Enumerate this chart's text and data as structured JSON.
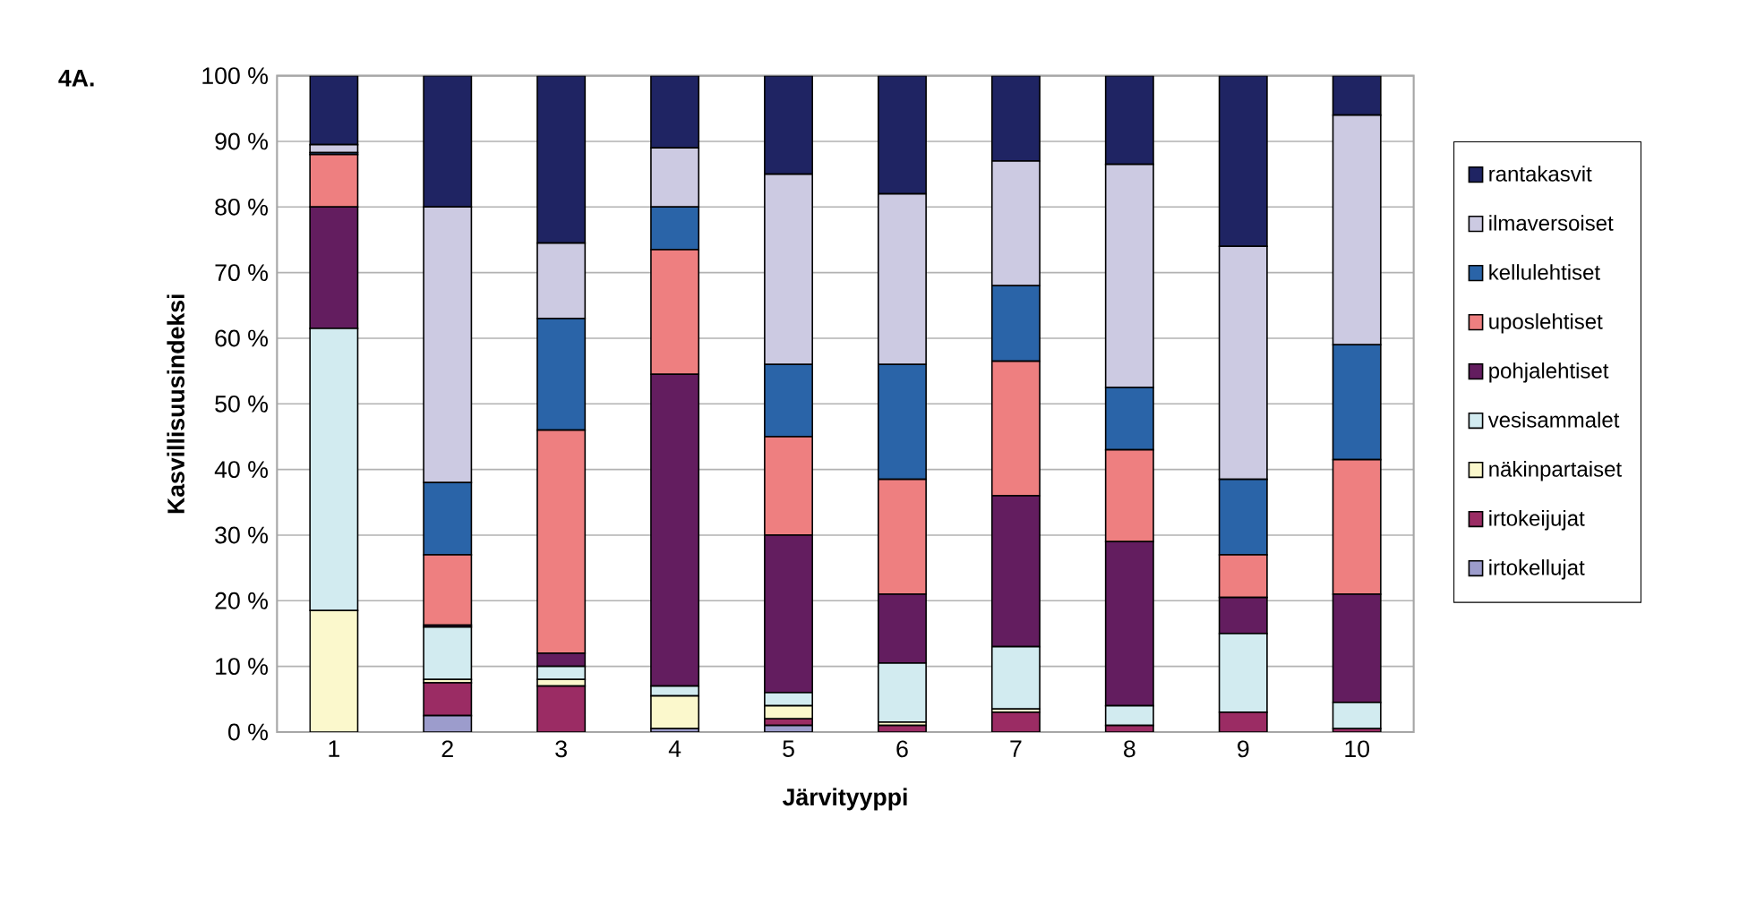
{
  "chart_data": {
    "type": "bar",
    "stacked": true,
    "title": "4A.",
    "xlabel": "Järvityyppi",
    "ylabel": "Kasvillisuusindeksi",
    "categories": [
      "1",
      "2",
      "3",
      "4",
      "5",
      "6",
      "7",
      "8",
      "9",
      "10"
    ],
    "ylim": [
      0,
      100
    ],
    "yticks": [
      {
        "value": 0,
        "label": "0 %"
      },
      {
        "value": 10,
        "label": "10 %"
      },
      {
        "value": 20,
        "label": "20 %"
      },
      {
        "value": 30,
        "label": "30 %"
      },
      {
        "value": 40,
        "label": "40 %"
      },
      {
        "value": 50,
        "label": "50 %"
      },
      {
        "value": 60,
        "label": "60 %"
      },
      {
        "value": 70,
        "label": "70 %"
      },
      {
        "value": 80,
        "label": "80 %"
      },
      {
        "value": 90,
        "label": "90 %"
      },
      {
        "value": 100,
        "label": "100 %"
      }
    ],
    "grid": "y",
    "legend": "right",
    "series": [
      {
        "name": "irtokellujat",
        "color": "#9c9ccc",
        "values": [
          0,
          2.5,
          0,
          0.5,
          1,
          0,
          0,
          0,
          0,
          0
        ]
      },
      {
        "name": "irtokeijujat",
        "color": "#9b2c64",
        "values": [
          0,
          5,
          7,
          0,
          1,
          1,
          3,
          1,
          3,
          0.5
        ]
      },
      {
        "name": "näkinpartaiset",
        "color": "#fbf8cc",
        "values": [
          18.5,
          0.5,
          1,
          5,
          2,
          0.5,
          0.5,
          0,
          0,
          0
        ]
      },
      {
        "name": "vesisammalet",
        "color": "#d2ebf0",
        "values": [
          43,
          8,
          2,
          1.5,
          2,
          9,
          9.5,
          3,
          12,
          4
        ]
      },
      {
        "name": "pohjalehtiset",
        "color": "#631d5f",
        "values": [
          18.5,
          0.3,
          2,
          47.5,
          24,
          10.5,
          23,
          25,
          5.5,
          16.5
        ]
      },
      {
        "name": "uposlehtiset",
        "color": "#ee7f80",
        "values": [
          8,
          10.7,
          34,
          19,
          15,
          17.5,
          20.5,
          14,
          6.5,
          20.5
        ]
      },
      {
        "name": "kellulehtiset",
        "color": "#2a64a8",
        "values": [
          0.3,
          11,
          17,
          6.5,
          11,
          17.5,
          11.5,
          9.5,
          11.5,
          17.5
        ]
      },
      {
        "name": "ilmaversoiset",
        "color": "#cccae2",
        "values": [
          1.2,
          42,
          11.5,
          9,
          29,
          26,
          19,
          34,
          35.5,
          35
        ]
      },
      {
        "name": "rantakasvit",
        "color": "#1f2463",
        "values": [
          10.5,
          20,
          25.5,
          11,
          15,
          18,
          13,
          13.5,
          26,
          6
        ]
      }
    ]
  }
}
